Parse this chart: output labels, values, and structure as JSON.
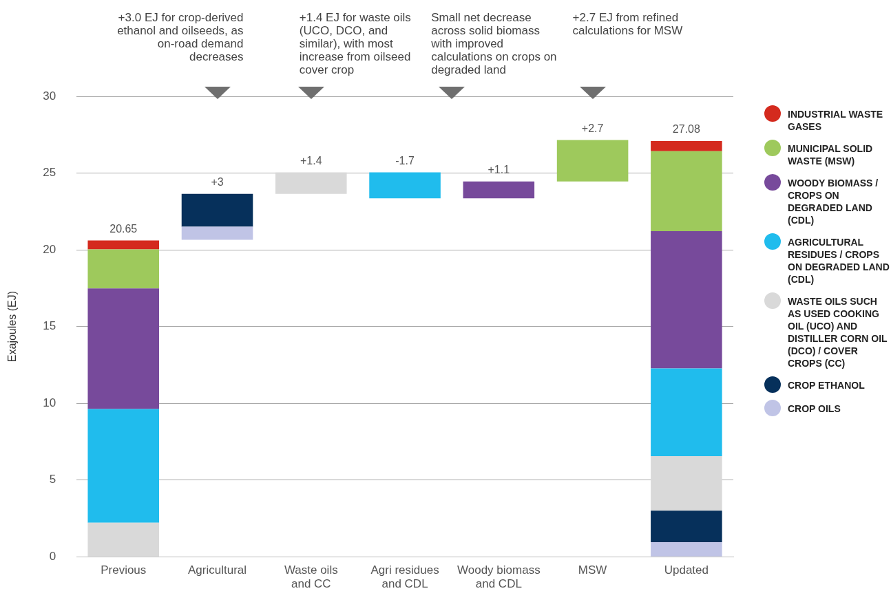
{
  "chart_data": {
    "type": "bar",
    "ylabel": "Exajoules (EJ)",
    "categories": [
      "Previous",
      "Agricultural",
      "Waste oils and CC",
      "Agri residues and CDL",
      "Woody biomass and CDL",
      "MSW",
      "Updated"
    ],
    "series": [
      {
        "name": "CROP OILS",
        "color": "#c0c4e6",
        "values": [
          null,
          0.85,
          null,
          null,
          null,
          null,
          0.95
        ],
        "base": [
          null,
          20.65,
          null,
          null,
          null,
          null,
          0
        ]
      },
      {
        "name": "CROP ETHANOL",
        "color": "#06305b",
        "values": [
          null,
          2.15,
          null,
          null,
          null,
          null,
          2.05
        ],
        "base": [
          null,
          21.5,
          null,
          null,
          null,
          null,
          0.95
        ]
      },
      {
        "name": "WASTE OILS SUCH AS USED COOKING OIL (UCO) AND DISTILLER CORN OIL (DCO) / COVER CROPS (CC)",
        "color": "#d9d9d9",
        "values": [
          2.22,
          null,
          1.4,
          null,
          null,
          null,
          3.55
        ],
        "base": [
          0,
          null,
          23.65,
          null,
          null,
          null,
          3.0
        ]
      },
      {
        "name": "AGRICULTURAL RESIDUES / CROPS ON DEGRADED LAND (CDL)",
        "color": "#20bced",
        "values": [
          7.4,
          null,
          null,
          -1.7,
          null,
          null,
          5.72
        ],
        "base": [
          2.22,
          null,
          null,
          25.05,
          null,
          null,
          6.55
        ]
      },
      {
        "name": "WOODY BIOMASS / CROPS ON DEGRADED LAND (CDL)",
        "color": "#774a9b",
        "values": [
          7.86,
          null,
          null,
          null,
          1.1,
          null,
          8.94
        ],
        "base": [
          9.62,
          null,
          null,
          null,
          23.35,
          null,
          12.27
        ]
      },
      {
        "name": "MUNICIPAL SOLID WASTE (MSW)",
        "color": "#9ec95c",
        "values": [
          2.54,
          null,
          null,
          null,
          null,
          2.7,
          5.22
        ],
        "base": [
          17.48,
          null,
          null,
          null,
          null,
          24.45,
          21.21
        ]
      },
      {
        "name": "INDUSTRIAL WASTE GASES",
        "color": "#d42a1e",
        "values": [
          0.59,
          null,
          null,
          null,
          null,
          null,
          0.66
        ],
        "base": [
          20.02,
          null,
          null,
          null,
          null,
          null,
          26.43
        ]
      }
    ],
    "totals": [
      "20.65",
      "+3",
      "+1.4",
      "-1.7",
      "+1.1",
      "+2.7",
      "27.08"
    ],
    "annotations": [
      "+3.0 EJ for crop-derived ethanol and oilseeds, as on-road demand decreases",
      "+1.4 EJ for waste oils (UCO, DCO, and similar), with most increase from oilseed cover crop",
      "Small net decrease across solid biomass with improved calculations on crops on degraded land",
      "+2.7 EJ from refined calculations for MSW"
    ],
    "ylim": [
      0,
      30
    ],
    "yticks": [
      0,
      5,
      10,
      15,
      20,
      25,
      30
    ],
    "grid": "y",
    "legend": "right"
  }
}
